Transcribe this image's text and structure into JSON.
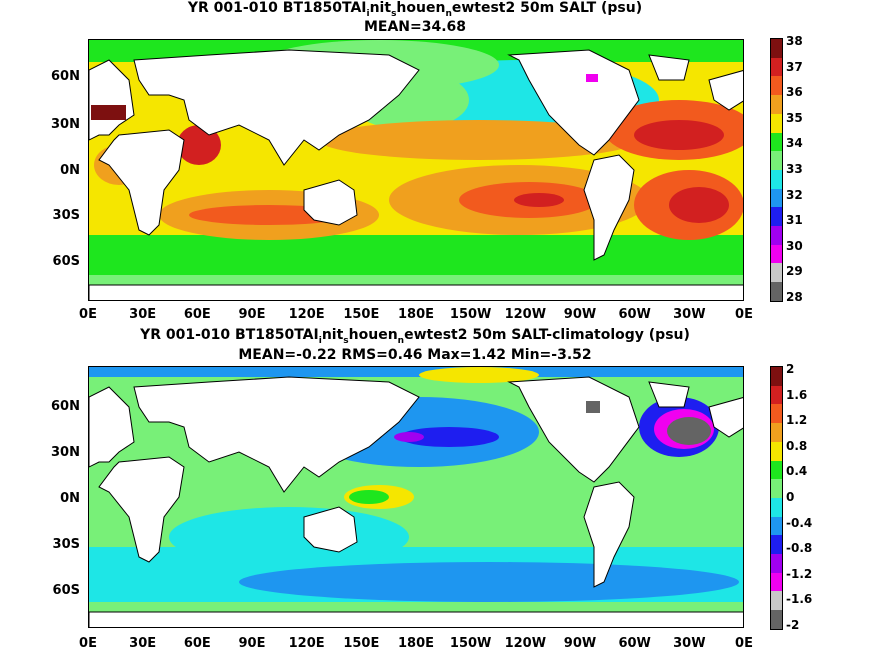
{
  "top_panel": {
    "title_line1": "YR 001-010 BT1850TAI",
    "title_line1_sub1": "i",
    "title_line1_mid1": "nit",
    "title_line1_sub2": "s",
    "title_line1_mid2": "houen",
    "title_line1_sub3": "n",
    "title_line1_end": "ewtest2 50m SALT (psu)",
    "title_line2": "MEAN=34.68",
    "colorbar_labels": [
      "38",
      "37",
      "36",
      "35",
      "34",
      "33",
      "32",
      "31",
      "30",
      "29",
      "28"
    ],
    "colorbar_colors": [
      "#7d1010",
      "#d22020",
      "#f25a1e",
      "#f0a01e",
      "#f5e600",
      "#1ee61e",
      "#78f078",
      "#1ee6e6",
      "#1e96f0",
      "#1e1ef0",
      "#a000f0",
      "#f000f0",
      "#c8c8c8",
      "#646464"
    ]
  },
  "bottom_panel": {
    "title_line1": "YR 001-010 BT1850TAI",
    "title_line1_sub1": "i",
    "title_line1_mid1": "nit",
    "title_line1_sub2": "s",
    "title_line1_mid2": "houen",
    "title_line1_sub3": "n",
    "title_line1_end": "ewtest2 50m SALT-climatology (psu)",
    "title_line2": "MEAN=-0.22   RMS=0.46   Max=1.42   Min=-3.52",
    "colorbar_labels": [
      "2",
      "1.6",
      "1.2",
      "0.8",
      "0.4",
      "0",
      "-0.4",
      "-0.8",
      "-1.2",
      "-1.6",
      "-2"
    ],
    "colorbar_colors": [
      "#7d1010",
      "#d22020",
      "#f25a1e",
      "#f0a01e",
      "#f5e600",
      "#1ee61e",
      "#78f078",
      "#1ee6e6",
      "#1e96f0",
      "#1e1ef0",
      "#a000f0",
      "#f000f0",
      "#c8c8c8",
      "#646464"
    ]
  },
  "axes": {
    "lat_labels": [
      "60N",
      "30N",
      "0N",
      "30S",
      "60S"
    ],
    "lon_labels": [
      "0E",
      "30E",
      "60E",
      "90E",
      "120E",
      "150E",
      "180E",
      "150W",
      "120W",
      "90W",
      "60W",
      "30W",
      "0E"
    ]
  }
}
